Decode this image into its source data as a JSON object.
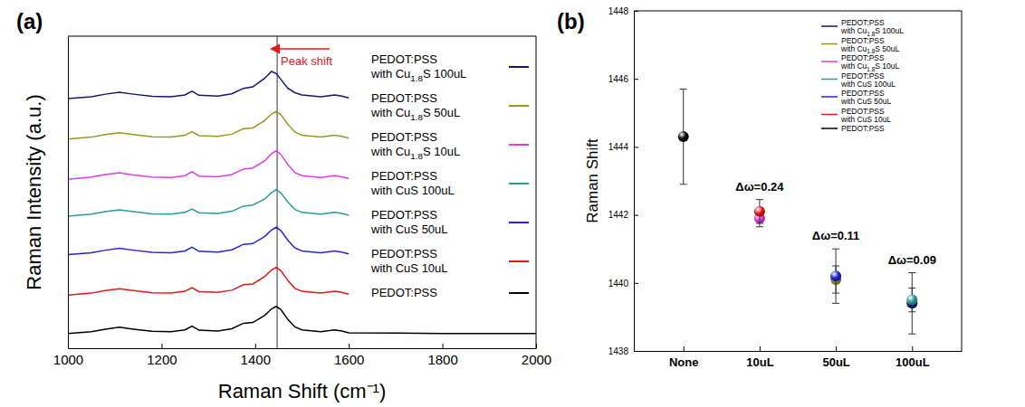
{
  "chart_data": [
    {
      "type": "line",
      "title": "(a)",
      "x_label": "Raman Shift (cm⁻¹)",
      "y_label": "Raman Intensity (a.u.)",
      "x": [
        1000,
        1050,
        1080,
        1110,
        1140,
        1180,
        1220,
        1250,
        1265,
        1280,
        1320,
        1350,
        1375,
        1395,
        1420,
        1435,
        1445,
        1455,
        1470,
        1485,
        1500,
        1540,
        1570,
        1585,
        1600,
        1700,
        1800,
        1900,
        2000
      ],
      "xlim": [
        1000,
        2000
      ],
      "xticks": [
        1000,
        1200,
        1400,
        1600,
        1800,
        2000
      ],
      "ylim": [
        0,
        8.5
      ],
      "tick_labels": "x",
      "legend": "right",
      "vline": 1447,
      "annotation": "Peak shift",
      "series": [
        {
          "name": "PEDOT:PSS with Cu1.8S 100uL",
          "color": "#14186b",
          "values": [
            6.8,
            6.85,
            6.92,
            6.97,
            6.92,
            6.86,
            6.85,
            6.9,
            7.0,
            6.89,
            6.87,
            6.93,
            7.08,
            7.12,
            7.35,
            7.54,
            7.48,
            7.32,
            7.08,
            6.96,
            6.9,
            6.85,
            6.9,
            6.87,
            6.82,
            null,
            null,
            null,
            null
          ]
        },
        {
          "name": "PEDOT:PSS with Cu1.8S 50uL",
          "color": "#9a981c",
          "values": [
            5.7,
            5.75,
            5.82,
            5.87,
            5.82,
            5.76,
            5.75,
            5.8,
            5.9,
            5.79,
            5.77,
            5.83,
            5.98,
            6.0,
            6.2,
            6.38,
            6.45,
            6.36,
            6.1,
            5.89,
            5.8,
            5.75,
            5.8,
            5.77,
            5.72,
            null,
            null,
            null,
            null
          ]
        },
        {
          "name": "PEDOT:PSS with Cu1.8S 10uL",
          "color": "#e03ce0",
          "values": [
            4.6,
            4.66,
            4.73,
            4.78,
            4.72,
            4.66,
            4.65,
            4.7,
            4.81,
            4.69,
            4.67,
            4.73,
            4.88,
            4.91,
            5.1,
            5.3,
            5.38,
            5.28,
            5.0,
            4.78,
            4.7,
            4.65,
            4.7,
            4.67,
            4.62,
            null,
            null,
            null,
            null
          ]
        },
        {
          "name": "PEDOT:PSS with CuS 100uL",
          "color": "#2a9a9a",
          "values": [
            3.6,
            3.65,
            3.72,
            3.77,
            3.72,
            3.66,
            3.65,
            3.7,
            3.79,
            3.69,
            3.67,
            3.73,
            3.87,
            3.9,
            4.06,
            4.24,
            4.32,
            4.23,
            3.98,
            3.78,
            3.7,
            3.65,
            3.7,
            3.67,
            3.62,
            null,
            null,
            null,
            null
          ]
        },
        {
          "name": "PEDOT:PSS with CuS 50uL",
          "color": "#2424d0",
          "values": [
            2.55,
            2.6,
            2.67,
            2.72,
            2.67,
            2.61,
            2.6,
            2.65,
            2.75,
            2.64,
            2.62,
            2.68,
            2.83,
            2.85,
            3.04,
            3.22,
            3.3,
            3.2,
            2.94,
            2.73,
            2.65,
            2.6,
            2.65,
            2.62,
            2.57,
            null,
            null,
            null,
            null
          ]
        },
        {
          "name": "PEDOT:PSS with CuS 10uL",
          "color": "#e01818",
          "values": [
            1.45,
            1.5,
            1.57,
            1.62,
            1.57,
            1.51,
            1.5,
            1.55,
            1.65,
            1.54,
            1.52,
            1.58,
            1.73,
            1.75,
            1.95,
            2.13,
            2.2,
            2.11,
            1.84,
            1.63,
            1.55,
            1.5,
            1.55,
            1.52,
            1.47,
            null,
            null,
            null,
            null
          ]
        },
        {
          "name": "PEDOT:PSS",
          "color": "#000000",
          "values": [
            0.4,
            0.45,
            0.52,
            0.57,
            0.52,
            0.46,
            0.45,
            0.5,
            0.6,
            0.49,
            0.47,
            0.53,
            0.68,
            0.7,
            0.89,
            1.07,
            1.14,
            1.05,
            0.78,
            0.58,
            0.5,
            0.45,
            0.5,
            0.47,
            0.42,
            0.41,
            0.4,
            0.4,
            0.4
          ]
        }
      ]
    },
    {
      "type": "scatter",
      "title": "(b)",
      "y_label": "Raman Shift",
      "categories": [
        "None",
        "10uL",
        "50uL",
        "100uL"
      ],
      "ylim": [
        1438,
        1448
      ],
      "yticks": [
        1438,
        1440,
        1442,
        1444,
        1446,
        1448
      ],
      "legend": "upper right",
      "marker": "circle",
      "series": [
        {
          "name": "PEDOT:PSS with Cu1.8S 100uL",
          "color": "#14186b",
          "values": [
            null,
            null,
            null,
            1439.4
          ],
          "errors": [
            null,
            null,
            null,
            0.9
          ]
        },
        {
          "name": "PEDOT:PSS with Cu1.8S 50uL",
          "color": "#9a981c",
          "values": [
            null,
            null,
            1440.1,
            null
          ],
          "errors": [
            null,
            null,
            0.4,
            null
          ]
        },
        {
          "name": "PEDOT:PSS with Cu1.8S 10uL",
          "color": "#e03ce0",
          "values": [
            null,
            1441.9,
            null,
            null
          ],
          "errors": [
            null,
            0.25,
            null,
            null
          ]
        },
        {
          "name": "PEDOT:PSS with CuS 100uL",
          "color": "#2a9a9a",
          "values": [
            null,
            null,
            null,
            1439.5
          ],
          "errors": [
            null,
            null,
            null,
            0.35
          ]
        },
        {
          "name": "PEDOT:PSS with CuS 50uL",
          "color": "#2424d0",
          "values": [
            null,
            null,
            1440.2,
            null
          ],
          "errors": [
            null,
            null,
            0.8,
            null
          ]
        },
        {
          "name": "PEDOT:PSS with CuS 10uL",
          "color": "#e01818",
          "values": [
            null,
            1442.1,
            null,
            null
          ],
          "errors": [
            null,
            0.35,
            null,
            null
          ]
        },
        {
          "name": "PEDOT:PSS",
          "color": "#000000",
          "values": [
            1444.3,
            null,
            null,
            null
          ],
          "errors": [
            1.4,
            null,
            null,
            null
          ]
        }
      ],
      "annotations": [
        {
          "category": "10uL",
          "text": "Δω=0.24"
        },
        {
          "category": "50uL",
          "text": "Δω=0.11"
        },
        {
          "category": "100uL",
          "text": "Δω=0.09"
        }
      ]
    }
  ]
}
